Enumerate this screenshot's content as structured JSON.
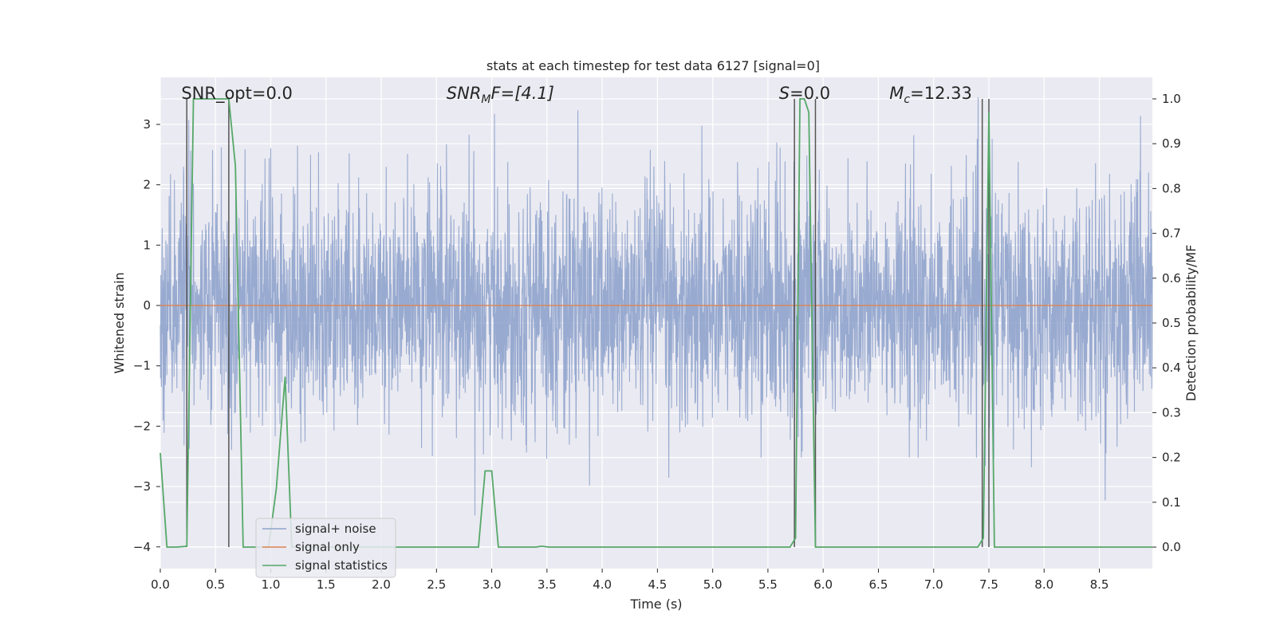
{
  "chart_data": {
    "type": "line",
    "title": "stats at each timestep for test data 6127 [signal=0]",
    "xlabel": "Time (s)",
    "ylabel_left": "Whitened strain",
    "ylabel_right": "Detection probability/MF",
    "xlim": [
      0.0,
      8.98
    ],
    "ylim_left": [
      -4.36,
      3.78
    ],
    "ylim_right": [
      -0.048,
      1.048
    ],
    "x_ticks": [
      0.0,
      0.5,
      1.0,
      1.5,
      2.0,
      2.5,
      3.0,
      3.5,
      4.0,
      4.5,
      5.0,
      5.5,
      6.0,
      6.5,
      7.0,
      7.5,
      8.0,
      8.5
    ],
    "x_tick_labels": [
      "0.0",
      "0.5",
      "1.0",
      "1.5",
      "2.0",
      "2.5",
      "3.0",
      "3.5",
      "4.0",
      "4.5",
      "5.0",
      "5.5",
      "6.0",
      "6.5",
      "7.0",
      "7.5",
      "8.0",
      "8.5"
    ],
    "y_left_ticks": [
      3,
      2,
      1,
      0,
      -1,
      -2,
      -3,
      -4
    ],
    "y_left_tick_labels": [
      "3",
      "2",
      "1",
      "0",
      "−1",
      "−2",
      "−3",
      "−4"
    ],
    "y_right_ticks": [
      1.0,
      0.9,
      0.8,
      0.7,
      0.6,
      0.5,
      0.4,
      0.3,
      0.2,
      0.1,
      0.0
    ],
    "y_right_tick_labels": [
      "1.0",
      "0.9",
      "0.8",
      "0.7",
      "0.6",
      "0.5",
      "0.4",
      "0.3",
      "0.2",
      "0.1",
      "0.0"
    ],
    "grid": true,
    "legend_position": "lower-left",
    "series": [
      {
        "name": "signal+ noise",
        "axis": "left",
        "color": "#8fa3cc",
        "kind": "noise",
        "sample_rate_hz": 400,
        "std": 0.95,
        "min": -4.0,
        "max": 3.45
      },
      {
        "name": "signal only",
        "axis": "left",
        "color": "#dd8452",
        "x": [
          0.0,
          8.98
        ],
        "y": [
          0.0,
          0.0
        ]
      },
      {
        "name": "signal statistics",
        "axis": "right",
        "color": "#55a868",
        "x": [
          0.0,
          0.06,
          0.15,
          0.24,
          0.3,
          0.35,
          0.45,
          0.55,
          0.62,
          0.68,
          0.75,
          0.9,
          0.98,
          1.05,
          1.13,
          1.19,
          1.25,
          1.4,
          2.7,
          2.88,
          2.94,
          3.0,
          3.06,
          3.4,
          3.45,
          3.52,
          5.7,
          5.75,
          5.79,
          5.83,
          5.87,
          5.93,
          5.99,
          6.1,
          7.4,
          7.45,
          7.5,
          7.55,
          7.6,
          8.98
        ],
        "y": [
          0.21,
          0.0,
          0.0,
          0.002,
          1.0,
          1.0,
          1.0,
          1.0,
          1.0,
          0.85,
          0.0,
          0.0,
          0.0,
          0.13,
          0.38,
          0.0,
          0.0,
          0.0,
          0.0,
          0.0,
          0.17,
          0.17,
          0.0,
          0.0,
          0.002,
          0.0,
          0.0,
          0.02,
          1.0,
          1.0,
          0.97,
          0.0,
          0.0,
          0.0,
          0.0,
          0.02,
          0.97,
          0.0,
          0.0,
          0.0
        ]
      }
    ],
    "vertical_lines": [
      0.24,
      0.62,
      5.74,
      5.93,
      7.44,
      7.5
    ],
    "annotations": [
      {
        "text": "SNR_opt=0.0",
        "x": 0.19
      },
      {
        "text": "SNR_MF=[4.1]",
        "parts": [
          "SNR",
          "M",
          "F=[4.1]"
        ],
        "x": 2.59
      },
      {
        "text": "S=0.0",
        "parts": [
          "S",
          "=0.0"
        ],
        "x": 5.6
      },
      {
        "text": "M_c=12.33",
        "parts": [
          "M",
          "c",
          "=12.33"
        ],
        "x": 6.6
      }
    ],
    "colors": {
      "plot_background": "#eaeaf2",
      "grid": "#ffffff",
      "vertical_line": "#555555"
    }
  }
}
